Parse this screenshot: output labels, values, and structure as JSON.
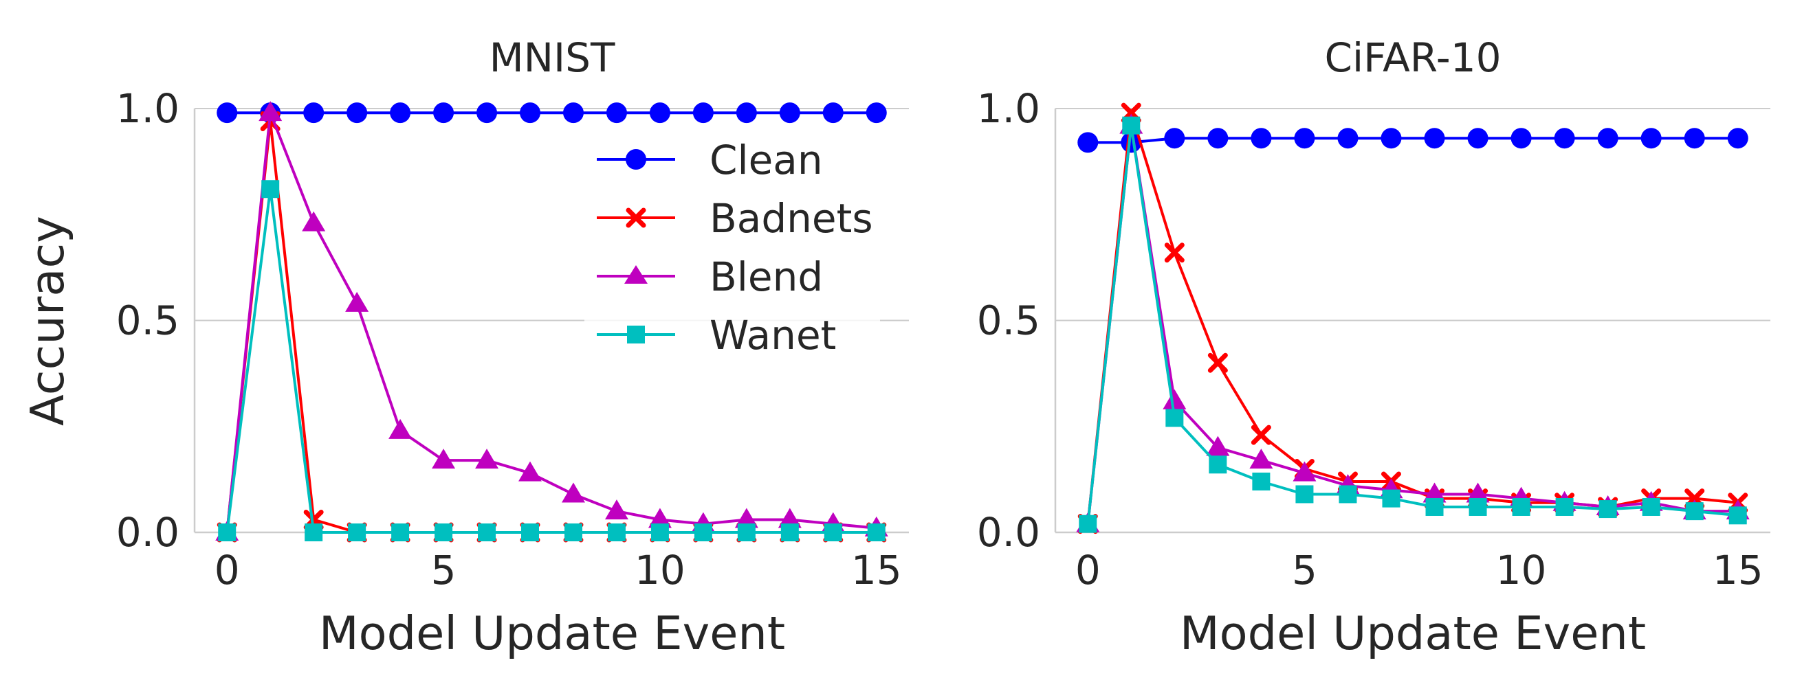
{
  "chart_data": [
    {
      "type": "line",
      "title": "MNIST",
      "xlabel": "Model Update Event",
      "ylabel": "Accuracy",
      "xlim": [
        -0.75,
        15.75
      ],
      "ylim": [
        0,
        1
      ],
      "xticks": [
        0,
        5,
        10,
        15
      ],
      "yticks": [
        0,
        0.5,
        1
      ],
      "ytick_labels": [
        "0.0",
        "0.5",
        "1.0"
      ],
      "legend": "upper right",
      "x": [
        0,
        1,
        2,
        3,
        4,
        5,
        6,
        7,
        8,
        9,
        10,
        11,
        12,
        13,
        14,
        15
      ],
      "series": [
        {
          "name": "Clean",
          "color": "#0000ff",
          "marker": "circle",
          "values": [
            0.99,
            0.99,
            0.99,
            0.99,
            0.99,
            0.99,
            0.99,
            0.99,
            0.99,
            0.99,
            0.99,
            0.99,
            0.99,
            0.99,
            0.99,
            0.99
          ]
        },
        {
          "name": "Badnets",
          "color": "#ff0000",
          "marker": "x",
          "values": [
            0.0,
            0.97,
            0.03,
            0.0,
            0.0,
            0.0,
            0.0,
            0.0,
            0.0,
            0.0,
            0.0,
            0.0,
            0.0,
            0.0,
            0.0,
            0.0
          ]
        },
        {
          "name": "Blend",
          "color": "#bf00bf",
          "marker": "triangle",
          "values": [
            0.0,
            0.99,
            0.73,
            0.54,
            0.24,
            0.17,
            0.17,
            0.14,
            0.09,
            0.05,
            0.03,
            0.02,
            0.03,
            0.03,
            0.02,
            0.01
          ]
        },
        {
          "name": "Wanet",
          "color": "#00bfbf",
          "marker": "square",
          "values": [
            0.0,
            0.81,
            0.0,
            0.0,
            0.0,
            0.0,
            0.0,
            0.0,
            0.0,
            0.0,
            0.0,
            0.0,
            0.0,
            0.0,
            0.0,
            0.0
          ]
        }
      ]
    },
    {
      "type": "line",
      "title": "CiFAR-10",
      "xlabel": "Model Update Event",
      "ylabel": "",
      "xlim": [
        -0.75,
        15.75
      ],
      "ylim": [
        0,
        1
      ],
      "xticks": [
        0,
        5,
        10,
        15
      ],
      "yticks": [
        0,
        0.5,
        1
      ],
      "ytick_labels": [
        "0.0",
        "0.5",
        "1.0"
      ],
      "x": [
        0,
        1,
        2,
        3,
        4,
        5,
        6,
        7,
        8,
        9,
        10,
        11,
        12,
        13,
        14,
        15
      ],
      "series": [
        {
          "name": "Clean",
          "color": "#0000ff",
          "marker": "circle",
          "values": [
            0.92,
            0.92,
            0.93,
            0.93,
            0.93,
            0.93,
            0.93,
            0.93,
            0.93,
            0.93,
            0.93,
            0.93,
            0.93,
            0.93,
            0.93,
            0.93
          ]
        },
        {
          "name": "Badnets",
          "color": "#ff0000",
          "marker": "x",
          "values": [
            0.02,
            0.99,
            0.66,
            0.4,
            0.23,
            0.15,
            0.12,
            0.12,
            0.08,
            0.08,
            0.07,
            0.07,
            0.06,
            0.08,
            0.08,
            0.07
          ]
        },
        {
          "name": "Blend",
          "color": "#bf00bf",
          "marker": "triangle",
          "values": [
            0.02,
            0.96,
            0.31,
            0.2,
            0.17,
            0.14,
            0.11,
            0.1,
            0.09,
            0.09,
            0.08,
            0.07,
            0.06,
            0.07,
            0.05,
            0.05
          ]
        },
        {
          "name": "Wanet",
          "color": "#00bfbf",
          "marker": "square",
          "values": [
            0.02,
            0.96,
            0.27,
            0.16,
            0.12,
            0.09,
            0.09,
            0.08,
            0.06,
            0.06,
            0.06,
            0.06,
            0.055,
            0.06,
            0.05,
            0.04
          ]
        }
      ]
    }
  ]
}
